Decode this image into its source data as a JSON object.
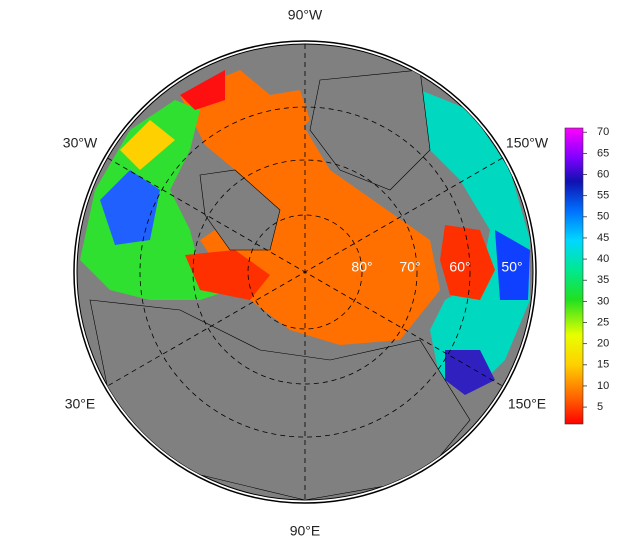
{
  "map": {
    "longitude_labels": [
      "90°W",
      "30°W",
      "150°W",
      "30°E",
      "150°E",
      "90°E"
    ],
    "latitude_labels": [
      "80°",
      "70°",
      "60°",
      "50°"
    ],
    "colorbar": {
      "lim": [
        1,
        71
      ],
      "ticks": [
        5,
        10,
        15,
        20,
        25,
        30,
        35,
        40,
        45,
        50,
        55,
        60,
        65,
        70
      ]
    }
  }
}
